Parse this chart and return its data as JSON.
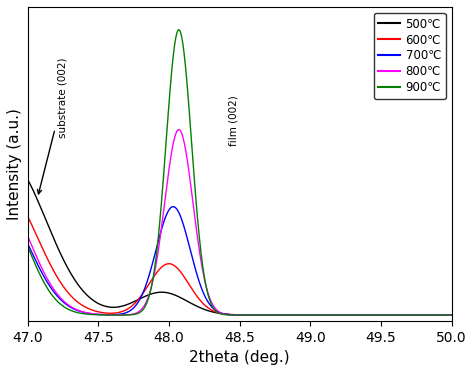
{
  "xlabel": "2theta (deg.)",
  "ylabel": "Intensity (a.u.)",
  "xlim": [
    47.0,
    50.0
  ],
  "xticks": [
    47.0,
    47.5,
    48.0,
    48.5,
    49.0,
    49.5,
    50.0
  ],
  "legend_labels": [
    "500℃",
    "600℃",
    "700℃",
    "800℃",
    "900℃"
  ],
  "line_colors": [
    "black",
    "red",
    "blue",
    "magenta",
    "green"
  ],
  "annotation_substrate": "substrate (002)",
  "annotation_film": "film (002)"
}
